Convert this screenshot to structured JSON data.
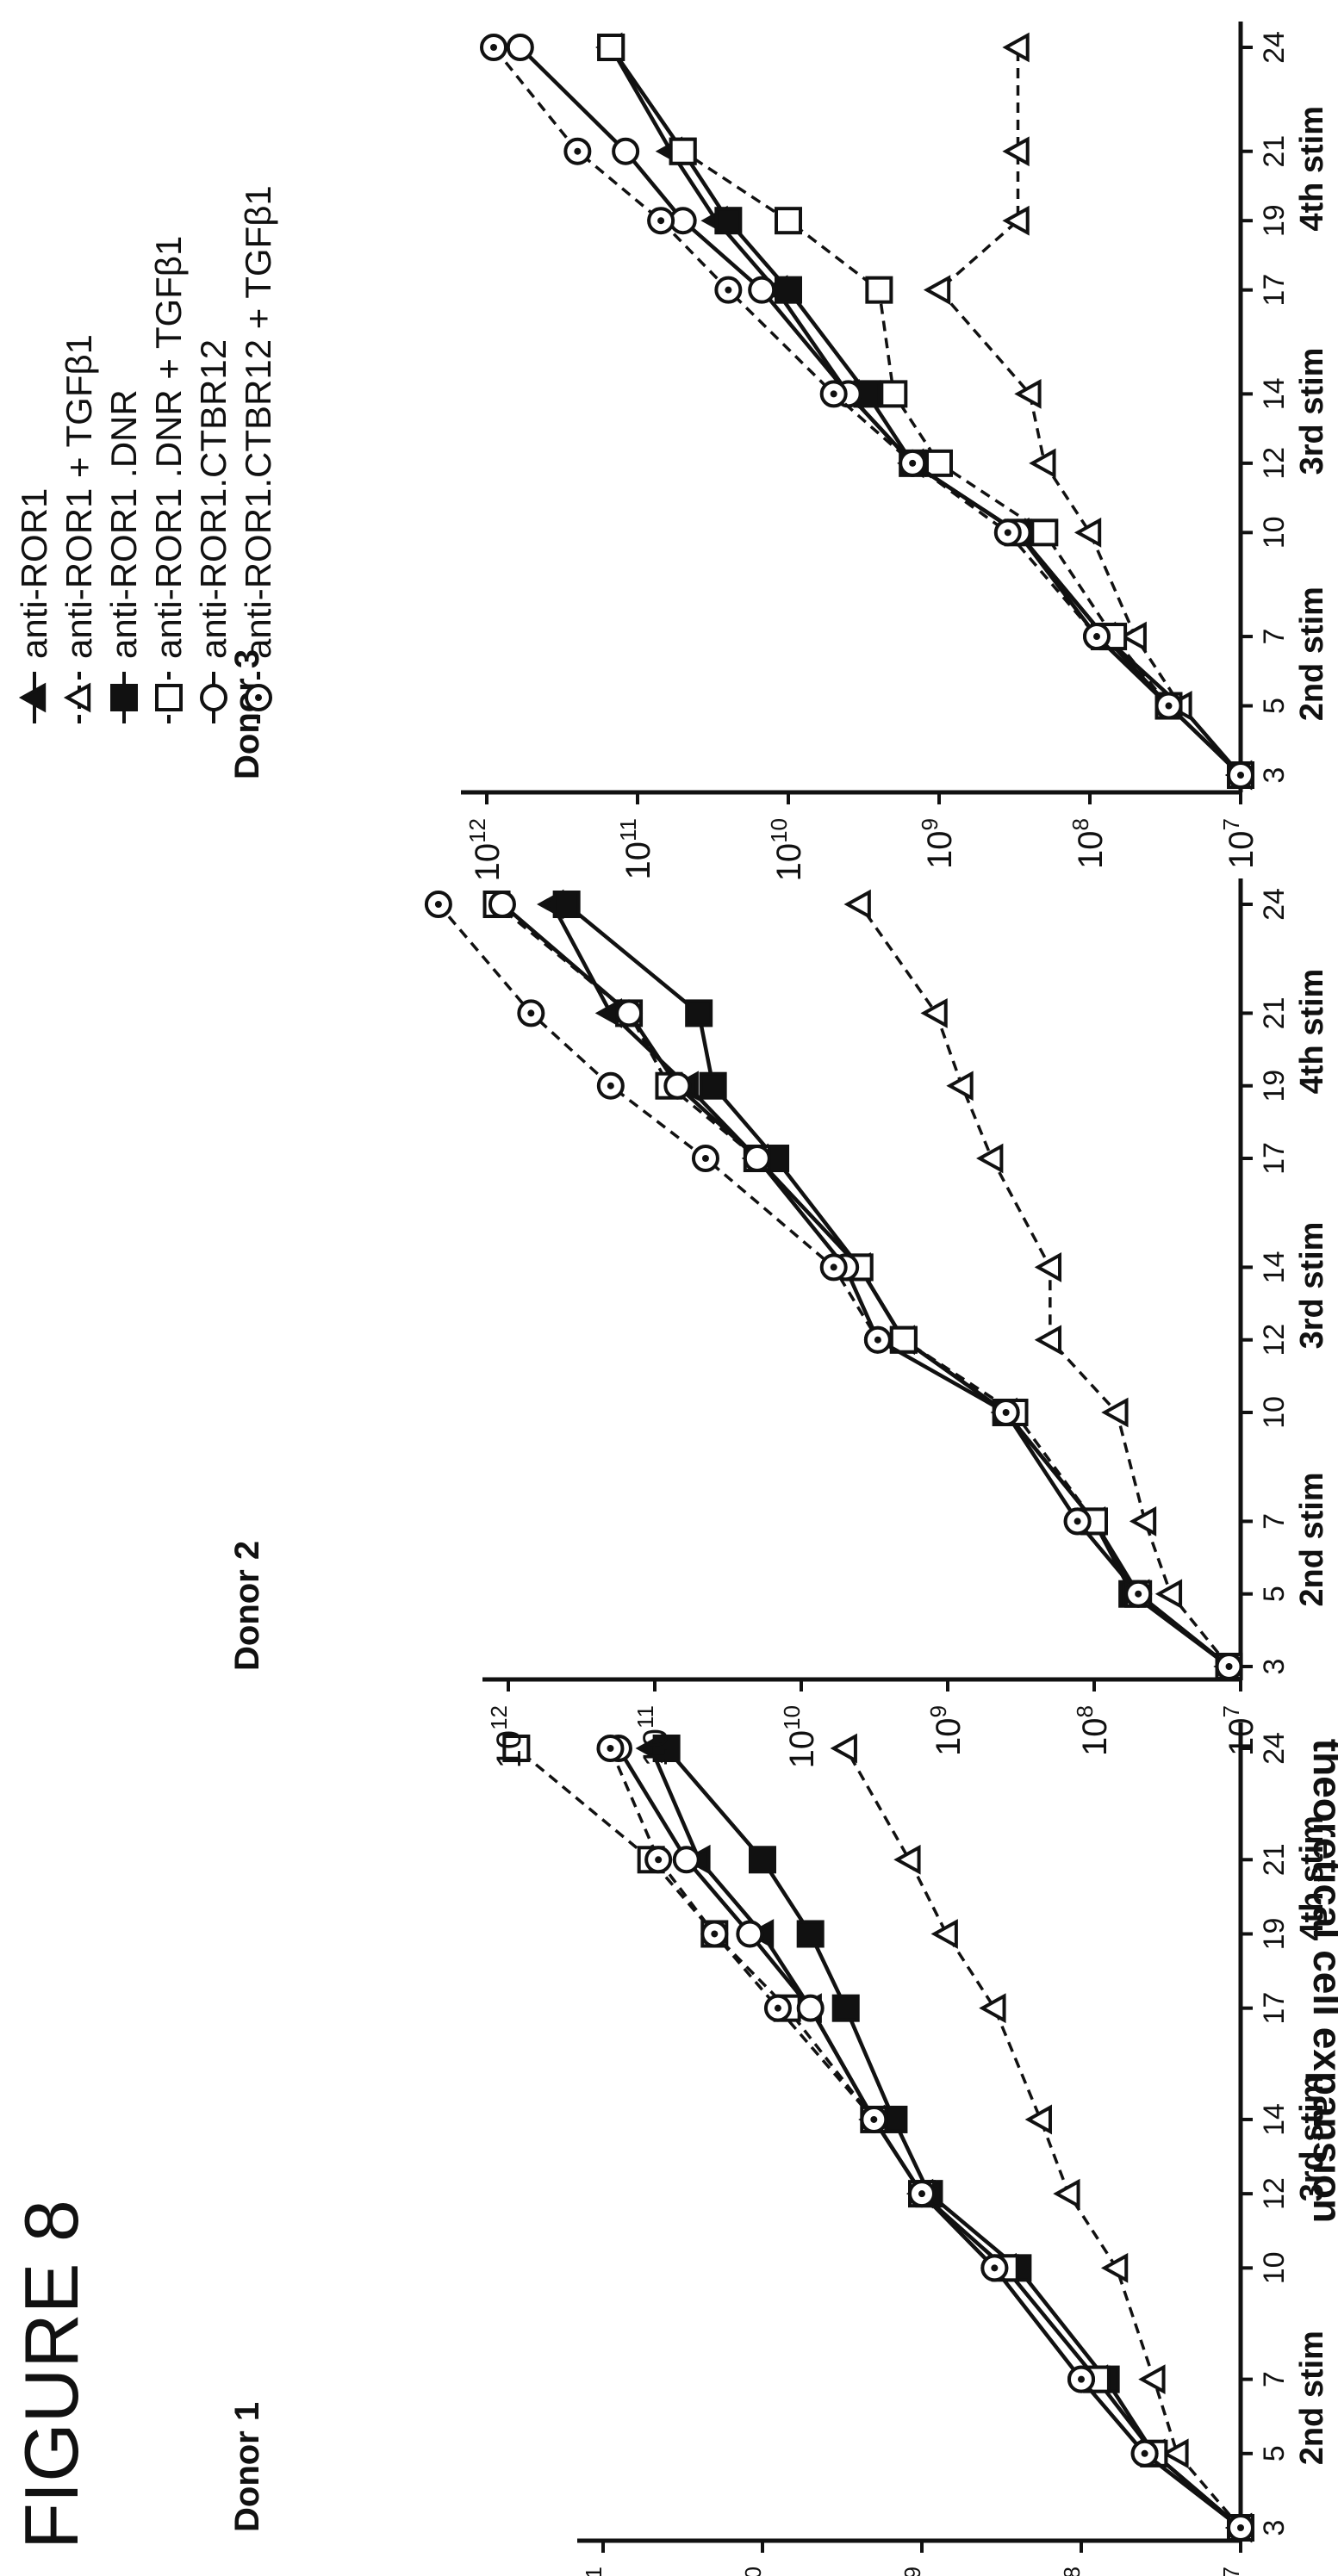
{
  "figure_title": "FIGURE 8",
  "ylabel": "theoretical cell expansion",
  "stim_labels": [
    "2nd stim",
    "3rd stim",
    "4th stim"
  ],
  "legend": [
    {
      "label": "anti-ROR1",
      "marker": "filled-triangle",
      "dashed": false
    },
    {
      "label": "anti-ROR1 + TGFβ1",
      "marker": "open-triangle",
      "dashed": true
    },
    {
      "label": "anti-ROR1 .DNR",
      "marker": "filled-square",
      "dashed": false
    },
    {
      "label": "anti-ROR1 .DNR + TGFβ1",
      "marker": "open-square",
      "dashed": true
    },
    {
      "label": "anti-ROR1.CTBR12",
      "marker": "open-circle",
      "dashed": false
    },
    {
      "label": "anti-ROR1.CTBR12 + TGFβ1",
      "marker": "dotted-circle",
      "dashed": true
    }
  ],
  "chart_data": [
    {
      "type": "line",
      "title": "Donor 1",
      "x": [
        3,
        5,
        7,
        10,
        12,
        14,
        17,
        19,
        21,
        24
      ],
      "x_ticks": [
        "3",
        "5",
        "7",
        "10",
        "12",
        "14",
        "17",
        "19",
        "21",
        "24"
      ],
      "y_scale": "log",
      "y_ticks": [
        7,
        8,
        9,
        10,
        11
      ],
      "ylim": [
        10000000.0,
        1000000000000.0
      ],
      "series": [
        {
          "name": "anti-ROR1",
          "values": [
            10000000.0,
            35000000.0,
            80000000.0,
            300000000.0,
            1000000000.0,
            2000000000.0,
            5000000000.0,
            10000000000.0,
            25000000000.0,
            50000000000.0
          ]
        },
        {
          "name": "anti-ROR1 + TGFβ1",
          "values": [
            10000000.0,
            25000000.0,
            35000000.0,
            60000000.0,
            120000000.0,
            180000000.0,
            350000000.0,
            700000000.0,
            1200000000.0,
            3000000000.0
          ]
        },
        {
          "name": "anti-ROR1 .DNR",
          "values": [
            10000000.0,
            35000000.0,
            70000000.0,
            250000000.0,
            900000000.0,
            1500000000.0,
            3000000000.0,
            5000000000.0,
            10000000000.0,
            40000000000.0
          ]
        },
        {
          "name": "anti-ROR1 .DNR + TGFβ1",
          "values": [
            10000000.0,
            35000000.0,
            80000000.0,
            300000000.0,
            1000000000.0,
            2000000000.0,
            7000000000.0,
            20000000000.0,
            50000000000.0,
            350000000000.0
          ]
        },
        {
          "name": "anti-ROR1.CTBR12",
          "values": [
            10000000.0,
            40000000.0,
            100000000.0,
            350000000.0,
            1000000000.0,
            2000000000.0,
            5000000000.0,
            12000000000.0,
            30000000000.0,
            80000000000.0
          ]
        },
        {
          "name": "anti-ROR1.CTBR12 + TGFβ1",
          "values": [
            10000000.0,
            40000000.0,
            100000000.0,
            350000000.0,
            1000000000.0,
            2000000000.0,
            8000000000.0,
            20000000000.0,
            45000000000.0,
            90000000000.0
          ]
        }
      ]
    },
    {
      "type": "line",
      "title": "Donor 2",
      "x": [
        3,
        5,
        7,
        10,
        12,
        14,
        17,
        19,
        21,
        24
      ],
      "x_ticks": [
        "3",
        "5",
        "7",
        "10",
        "12",
        "14",
        "17",
        "19",
        "21",
        "24"
      ],
      "y_scale": "log",
      "y_ticks": [
        7,
        8,
        9,
        10,
        11,
        12
      ],
      "ylim": [
        10000000.0,
        10000000000000.0
      ],
      "series": [
        {
          "name": "anti-ROR1",
          "values": [
            12000000.0,
            50000000.0,
            100000000.0,
            400000000.0,
            2000000000.0,
            4000000000.0,
            20000000000.0,
            60000000000.0,
            200000000000.0,
            500000000000.0
          ]
        },
        {
          "name": "anti-ROR1 + TGFβ1",
          "values": [
            12000000.0,
            30000000.0,
            45000000.0,
            70000000.0,
            200000000.0,
            200000000.0,
            500000000.0,
            800000000.0,
            1200000000.0,
            4000000000.0
          ]
        },
        {
          "name": "anti-ROR1 .DNR",
          "values": [
            12000000.0,
            55000000.0,
            100000000.0,
            400000000.0,
            2000000000.0,
            4000000000.0,
            15000000000.0,
            40000000000.0,
            50000000000.0,
            400000000000.0
          ]
        },
        {
          "name": "anti-ROR1 .DNR + TGFβ1",
          "values": [
            12000000.0,
            50000000.0,
            100000000.0,
            350000000.0,
            2000000000.0,
            4000000000.0,
            20000000000.0,
            80000000000.0,
            150000000000.0,
            1200000000000.0
          ]
        },
        {
          "name": "anti-ROR1.CTBR12",
          "values": [
            12000000.0,
            50000000.0,
            130000000.0,
            400000000.0,
            3000000000.0,
            5000000000.0,
            20000000000.0,
            70000000000.0,
            150000000000.0,
            1100000000000.0
          ]
        },
        {
          "name": "anti-ROR1.CTBR12 + TGFβ1",
          "values": [
            12000000.0,
            50000000.0,
            130000000.0,
            400000000.0,
            3000000000.0,
            6000000000.0,
            45000000000.0,
            200000000000.0,
            700000000000.0,
            3000000000000.0
          ]
        }
      ]
    },
    {
      "type": "line",
      "title": "Donor 3",
      "x": [
        3,
        5,
        7,
        10,
        12,
        14,
        17,
        19,
        21,
        24
      ],
      "x_ticks": [
        "3",
        "5",
        "7",
        "10",
        "12",
        "14",
        "17",
        "19",
        "21",
        "24"
      ],
      "y_scale": "log",
      "y_ticks": [
        7,
        8,
        9,
        10,
        11,
        12
      ],
      "ylim": [
        10000000.0,
        1000000000000.0
      ],
      "series": [
        {
          "name": "anti-ROR1",
          "values": [
            10000000.0,
            25000000.0,
            80000000.0,
            300000000.0,
            1500000000.0,
            4000000000.0,
            12000000000.0,
            30000000000.0,
            60000000000.0,
            150000000000.0
          ]
        },
        {
          "name": "anti-ROR1 + TGFβ1",
          "values": [
            10000000.0,
            25000000.0,
            50000000.0,
            100000000.0,
            200000000.0,
            250000000.0,
            1000000000.0,
            300000000.0,
            300000000.0,
            300000000.0
          ]
        },
        {
          "name": "anti-ROR1 .DNR",
          "values": [
            10000000.0,
            30000000.0,
            80000000.0,
            300000000.0,
            1500000000.0,
            3000000000.0,
            10000000000.0,
            25000000000.0,
            50000000000.0,
            150000000000.0
          ]
        },
        {
          "name": "anti-ROR1 .DNR + TGFβ1",
          "values": [
            10000000.0,
            30000000.0,
            70000000.0,
            200000000.0,
            1000000000.0,
            2000000000.0,
            2500000000.0,
            10000000000.0,
            50000000000.0,
            150000000000.0
          ]
        },
        {
          "name": "anti-ROR1.CTBR12",
          "values": [
            10000000.0,
            30000000.0,
            90000000.0,
            300000000.0,
            1500000000.0,
            4000000000.0,
            15000000000.0,
            50000000000.0,
            120000000000.0,
            600000000000.0
          ]
        },
        {
          "name": "anti-ROR1.CTBR12 + TGFβ1",
          "values": [
            10000000.0,
            30000000.0,
            90000000.0,
            350000000.0,
            1500000000.0,
            5000000000.0,
            25000000000.0,
            70000000000.0,
            250000000000.0,
            900000000000.0
          ]
        }
      ]
    }
  ]
}
